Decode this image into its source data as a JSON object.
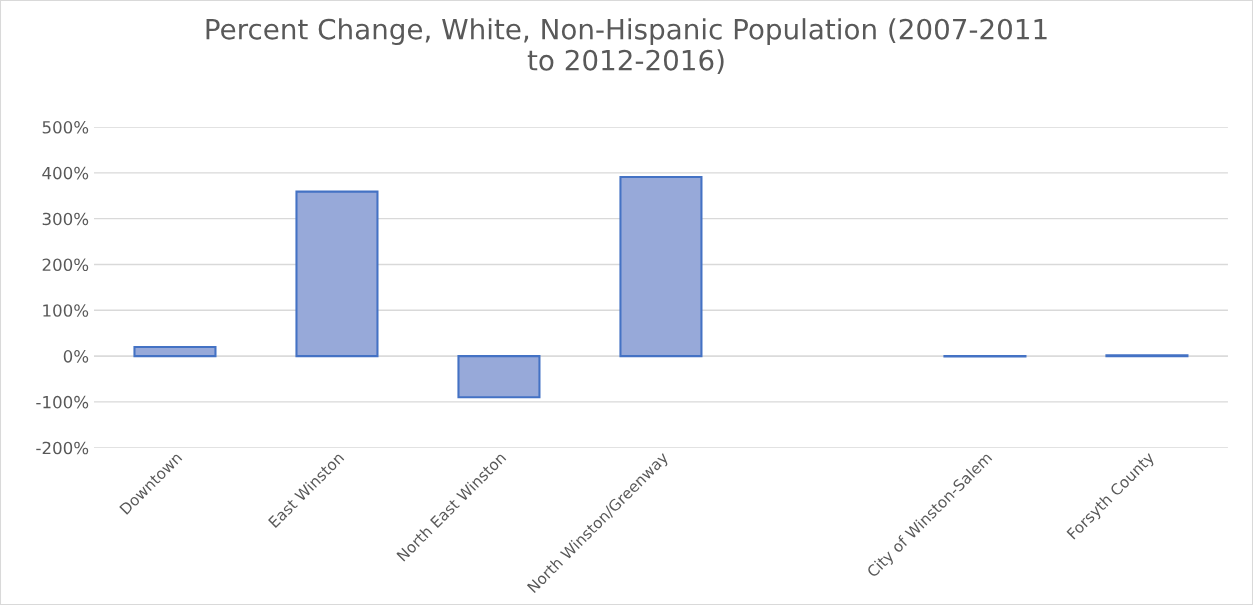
{
  "chart_data": {
    "type": "bar",
    "title": "Percent Change, White, Non-Hispanic Population (2007-2011\nto 2012-2016)",
    "categories": [
      "Downtown",
      "East Winston",
      "North East Winston",
      "North Winston/Greenway",
      null,
      "City of Winston-Salem",
      "Forsyth County"
    ],
    "values": [
      20,
      359,
      -90,
      391,
      null,
      -1,
      2
    ],
    "color": "#97a9d9",
    "ylim": [
      -200,
      500
    ],
    "yticks": [
      {
        "value": -200,
        "label": "-200%"
      },
      {
        "value": -100,
        "label": "-100%"
      },
      {
        "value": 0,
        "label": "0%"
      },
      {
        "value": 100,
        "label": "100%"
      },
      {
        "value": 200,
        "label": "200%"
      },
      {
        "value": 300,
        "label": "300%"
      },
      {
        "value": 400,
        "label": "400%"
      },
      {
        "value": 500,
        "label": "500%"
      }
    ],
    "grid": "y",
    "legend": false
  }
}
